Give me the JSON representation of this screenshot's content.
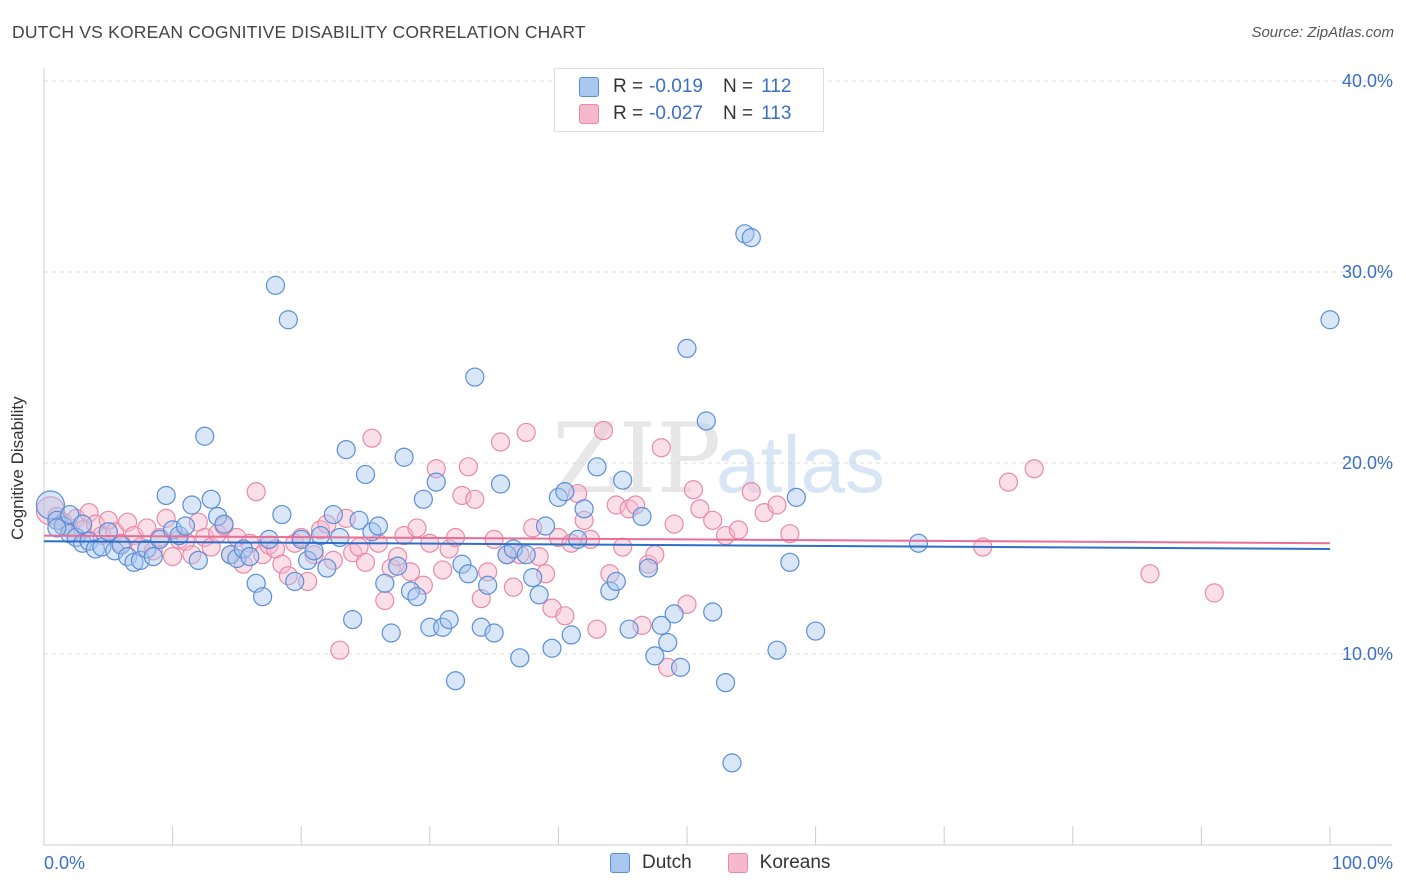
{
  "title": "DUTCH VS KOREAN COGNITIVE DISABILITY CORRELATION CHART",
  "source": "Source: ZipAtlas.com",
  "watermark": {
    "zip": "ZIP",
    "atlas": "atlas"
  },
  "legend": {
    "rows": [
      {
        "r_label": "R =",
        "r_value": "-0.019",
        "n_label": "N =",
        "n_value": "112"
      },
      {
        "r_label": "R =",
        "r_value": "-0.027",
        "n_label": "N =",
        "n_value": "113"
      }
    ]
  },
  "bottom_legend": [
    {
      "label": "Dutch"
    },
    {
      "label": "Koreans"
    }
  ],
  "colors": {
    "dutch_fill": "#a8c8f0",
    "dutch_stroke": "#5a8fd6",
    "dutch_line": "#2e6fc7",
    "korean_fill": "#f6b8cc",
    "korean_stroke": "#e98aa8",
    "korean_line": "#e86e96",
    "tick_text": "#3a6fc4",
    "grid": "#dddddd"
  },
  "chart_data": {
    "type": "scatter",
    "title": "DUTCH VS KOREAN COGNITIVE DISABILITY CORRELATION CHART",
    "xlabel": "",
    "ylabel": "Cognitive Disability",
    "xlim": [
      0,
      100
    ],
    "ylim": [
      0,
      41
    ],
    "x_tick_labels": [
      "0.0%",
      "100.0%"
    ],
    "y_ticks": [
      10,
      20,
      30,
      40
    ],
    "y_tick_labels": [
      "10.0%",
      "20.0%",
      "30.0%",
      "40.0%"
    ],
    "series": [
      {
        "name": "Dutch",
        "trend": {
          "x": [
            0,
            100
          ],
          "y": [
            15.9,
            15.5
          ]
        },
        "points": [
          [
            0.5,
            17.8
          ],
          [
            1,
            17
          ],
          [
            1.5,
            16.7
          ],
          [
            2,
            16.3
          ],
          [
            2.5,
            16.1
          ],
          [
            3,
            15.8
          ],
          [
            3.5,
            15.9
          ],
          [
            4,
            15.5
          ],
          [
            4.5,
            15.6
          ],
          [
            5,
            16.4
          ],
          [
            5.5,
            15.4
          ],
          [
            6,
            15.7
          ],
          [
            6.5,
            15.1
          ],
          [
            7,
            14.8
          ],
          [
            7.5,
            14.9
          ],
          [
            8,
            15.5
          ],
          [
            8.5,
            15.1
          ],
          [
            9,
            16
          ],
          [
            9.5,
            18.3
          ],
          [
            10,
            16.5
          ],
          [
            10.5,
            16.2
          ],
          [
            11,
            16.7
          ],
          [
            11.5,
            17.8
          ],
          [
            12,
            14.9
          ],
          [
            12.5,
            21.4
          ],
          [
            13,
            18.1
          ],
          [
            13.5,
            17.2
          ],
          [
            14,
            16.8
          ],
          [
            14.5,
            15.2
          ],
          [
            15,
            15
          ],
          [
            15.5,
            15.5
          ],
          [
            16,
            15.1
          ],
          [
            16.5,
            13.7
          ],
          [
            17,
            13
          ],
          [
            17.5,
            16
          ],
          [
            18,
            29.3
          ],
          [
            18.5,
            17.3
          ],
          [
            19,
            27.5
          ],
          [
            19.5,
            13.8
          ],
          [
            20,
            16
          ],
          [
            20.5,
            14.9
          ],
          [
            21,
            15.4
          ],
          [
            21.5,
            16.2
          ],
          [
            22,
            14.5
          ],
          [
            22.5,
            17.3
          ],
          [
            23,
            16.1
          ],
          [
            23.5,
            20.7
          ],
          [
            24,
            11.8
          ],
          [
            24.5,
            17
          ],
          [
            25,
            19.4
          ],
          [
            25.5,
            16.4
          ],
          [
            26,
            16.7
          ],
          [
            26.5,
            13.7
          ],
          [
            27,
            11.1
          ],
          [
            27.5,
            14.6
          ],
          [
            28,
            20.3
          ],
          [
            28.5,
            13.3
          ],
          [
            29,
            13
          ],
          [
            29.5,
            18.1
          ],
          [
            30,
            11.4
          ],
          [
            30.5,
            19
          ],
          [
            31,
            11.4
          ],
          [
            31.5,
            11.8
          ],
          [
            32,
            8.6
          ],
          [
            32.5,
            14.7
          ],
          [
            33,
            14.2
          ],
          [
            33.5,
            24.5
          ],
          [
            34,
            11.4
          ],
          [
            34.5,
            13.6
          ],
          [
            35,
            11.1
          ],
          [
            35.5,
            18.9
          ],
          [
            36,
            15.2
          ],
          [
            36.5,
            15.5
          ],
          [
            37,
            9.8
          ],
          [
            37.5,
            15.2
          ],
          [
            38,
            14
          ],
          [
            38.5,
            13.1
          ],
          [
            39,
            16.7
          ],
          [
            39.5,
            10.3
          ],
          [
            40,
            18.2
          ],
          [
            40.5,
            18.5
          ],
          [
            41,
            11
          ],
          [
            41.5,
            16
          ],
          [
            42,
            17.6
          ],
          [
            43,
            19.8
          ],
          [
            44,
            13.3
          ],
          [
            44.5,
            13.8
          ],
          [
            45,
            19.1
          ],
          [
            45.5,
            11.3
          ],
          [
            46.5,
            17.2
          ],
          [
            47,
            14.5
          ],
          [
            47.5,
            9.9
          ],
          [
            48,
            11.5
          ],
          [
            48.5,
            10.6
          ],
          [
            49,
            12.1
          ],
          [
            49.5,
            9.3
          ],
          [
            50,
            26
          ],
          [
            51.5,
            22.2
          ],
          [
            52,
            12.2
          ],
          [
            53,
            8.5
          ],
          [
            53.5,
            4.3
          ],
          [
            54.5,
            32
          ],
          [
            55,
            31.8
          ],
          [
            57,
            10.2
          ],
          [
            58,
            14.8
          ],
          [
            58.5,
            18.2
          ],
          [
            60,
            11.2
          ],
          [
            68,
            15.8
          ],
          [
            100,
            27.5
          ],
          [
            2,
            17.3
          ],
          [
            3,
            16.8
          ],
          [
            1,
            16.6
          ]
        ]
      },
      {
        "name": "Koreans",
        "trend": {
          "x": [
            0,
            100
          ],
          "y": [
            16.2,
            15.8
          ]
        },
        "points": [
          [
            0.5,
            17.5
          ],
          [
            1,
            17.2
          ],
          [
            1.5,
            16.9
          ],
          [
            2,
            16.6
          ],
          [
            2.5,
            17.1
          ],
          [
            3,
            16.5
          ],
          [
            3.5,
            17.4
          ],
          [
            4,
            16.8
          ],
          [
            4.5,
            16.2
          ],
          [
            5,
            17
          ],
          [
            5.5,
            16.4
          ],
          [
            6,
            15.8
          ],
          [
            6.5,
            16.9
          ],
          [
            7,
            16.2
          ],
          [
            7.5,
            15.6
          ],
          [
            8,
            16.6
          ],
          [
            8.5,
            15.4
          ],
          [
            9,
            16.1
          ],
          [
            9.5,
            17.1
          ],
          [
            10,
            15.1
          ],
          [
            10.5,
            16
          ],
          [
            11,
            15.9
          ],
          [
            11.5,
            15.2
          ],
          [
            12,
            16.9
          ],
          [
            12.5,
            16.1
          ],
          [
            13,
            15.6
          ],
          [
            13.5,
            16.3
          ],
          [
            14,
            16.7
          ],
          [
            14.5,
            15.2
          ],
          [
            15,
            16.1
          ],
          [
            15.5,
            14.7
          ],
          [
            16,
            15.8
          ],
          [
            16.5,
            18.5
          ],
          [
            17,
            15.2
          ],
          [
            17.5,
            15.7
          ],
          [
            18,
            15.5
          ],
          [
            18.5,
            14.7
          ],
          [
            19,
            14.1
          ],
          [
            19.5,
            15.8
          ],
          [
            20,
            16.1
          ],
          [
            20.5,
            13.8
          ],
          [
            21,
            15.2
          ],
          [
            21.5,
            16.5
          ],
          [
            22,
            16.8
          ],
          [
            22.5,
            14.9
          ],
          [
            23,
            10.2
          ],
          [
            23.5,
            17.1
          ],
          [
            24,
            15.3
          ],
          [
            24.5,
            15.6
          ],
          [
            25,
            14.8
          ],
          [
            25.5,
            21.3
          ],
          [
            26,
            15.8
          ],
          [
            26.5,
            12.8
          ],
          [
            27,
            14.5
          ],
          [
            27.5,
            15.1
          ],
          [
            28,
            16.2
          ],
          [
            28.5,
            14.3
          ],
          [
            29,
            16.6
          ],
          [
            29.5,
            13.6
          ],
          [
            30,
            15.8
          ],
          [
            30.5,
            19.7
          ],
          [
            31,
            14.4
          ],
          [
            31.5,
            15.5
          ],
          [
            32,
            16.1
          ],
          [
            32.5,
            18.3
          ],
          [
            33,
            19.8
          ],
          [
            33.5,
            18.1
          ],
          [
            34,
            12.9
          ],
          [
            34.5,
            14.3
          ],
          [
            35,
            16
          ],
          [
            35.5,
            21.1
          ],
          [
            36,
            15.2
          ],
          [
            36.5,
            13.5
          ],
          [
            37,
            15.2
          ],
          [
            37.5,
            21.6
          ],
          [
            38,
            16.6
          ],
          [
            38.5,
            15.1
          ],
          [
            39,
            14.2
          ],
          [
            39.5,
            12.4
          ],
          [
            40,
            16.1
          ],
          [
            40.5,
            12
          ],
          [
            41,
            15.8
          ],
          [
            41.5,
            18.4
          ],
          [
            42,
            17
          ],
          [
            42.5,
            16
          ],
          [
            43,
            11.3
          ],
          [
            43.5,
            21.7
          ],
          [
            44,
            14.2
          ],
          [
            44.5,
            17.8
          ],
          [
            45,
            15.6
          ],
          [
            45.5,
            17.6
          ],
          [
            46,
            17.8
          ],
          [
            46.5,
            11.5
          ],
          [
            47,
            14.7
          ],
          [
            47.5,
            15.2
          ],
          [
            48,
            20.8
          ],
          [
            48.5,
            9.3
          ],
          [
            49,
            16.8
          ],
          [
            50,
            12.6
          ],
          [
            50.5,
            18.6
          ],
          [
            51,
            17.6
          ],
          [
            52,
            17
          ],
          [
            53,
            16.2
          ],
          [
            54,
            16.5
          ],
          [
            55,
            18.5
          ],
          [
            56,
            17.4
          ],
          [
            57,
            17.8
          ],
          [
            58,
            16.3
          ],
          [
            73,
            15.6
          ],
          [
            75,
            19
          ],
          [
            77,
            19.7
          ],
          [
            86,
            14.2
          ],
          [
            91,
            13.2
          ]
        ]
      }
    ]
  }
}
